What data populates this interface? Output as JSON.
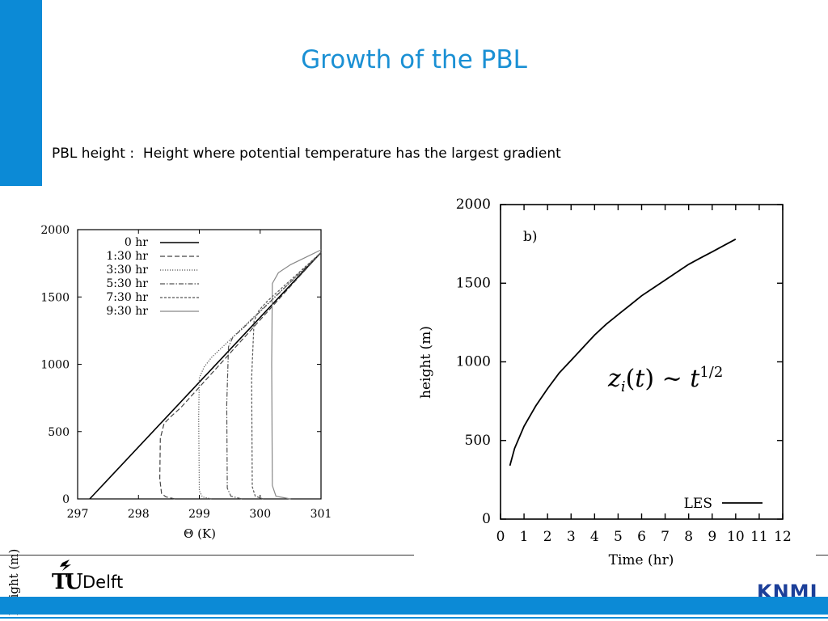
{
  "slide": {
    "title": "Growth of the PBL",
    "subtitle": "PBL height :  Height where potential temperature has the largest gradient",
    "logo_tu": "T",
    "logo_u": "U",
    "logo_delft": "Delft",
    "knmi": "KNMI"
  },
  "colors": {
    "accent": "#0c8ad6",
    "title": "#1a90d4",
    "knmi": "#1c3f99"
  },
  "chart_data": [
    {
      "type": "line",
      "xlabel": "Θ (K)",
      "ylabel": "Height (m)",
      "xlim": [
        297,
        301
      ],
      "ylim": [
        0,
        2000
      ],
      "xticks": [
        297,
        298,
        299,
        300,
        301
      ],
      "xtick_labels": [
        "297",
        "298",
        "299",
        "300",
        "301"
      ],
      "yticks": [
        0,
        500,
        1000,
        1500,
        2000
      ],
      "ytick_labels": [
        "0",
        "500",
        "1000",
        "1500",
        "2000"
      ],
      "legend_position": "top-left",
      "series": [
        {
          "name": "0 hr",
          "style": "solid",
          "color": "#000000",
          "x": [
            297.2,
            301.0
          ],
          "y": [
            0,
            1830
          ]
        },
        {
          "name": "1:30 hr",
          "style": "dashed",
          "color": "#444444",
          "x": [
            298.6,
            298.45,
            298.38,
            298.35,
            298.36,
            298.42,
            298.53,
            298.7,
            301.0
          ],
          "y": [
            0,
            15,
            40,
            150,
            450,
            560,
            610,
            680,
            1830
          ]
        },
        {
          "name": "3:30 hr",
          "style": "dotted",
          "color": "#555555",
          "x": [
            299.2,
            299.05,
            299.0,
            298.99,
            299.0,
            299.08,
            299.2,
            301.0
          ],
          "y": [
            0,
            15,
            60,
            600,
            900,
            980,
            1050,
            1830
          ]
        },
        {
          "name": "5:30 hr",
          "style": "dashdot",
          "color": "#555555",
          "x": [
            299.7,
            299.52,
            299.46,
            299.45,
            299.48,
            299.55,
            299.7,
            301.0
          ],
          "y": [
            0,
            20,
            80,
            700,
            1130,
            1200,
            1260,
            1830
          ]
        },
        {
          "name": "7:30 hr",
          "style": "shortdash",
          "color": "#555555",
          "x": [
            300.05,
            299.92,
            299.87,
            299.86,
            299.9,
            299.98,
            300.12,
            301.0
          ],
          "y": [
            0,
            20,
            90,
            900,
            1320,
            1400,
            1470,
            1830
          ]
        },
        {
          "name": "9:30 hr",
          "style": "solid-gray",
          "color": "#888888",
          "x": [
            300.5,
            300.26,
            300.2,
            300.19,
            300.2,
            300.3,
            300.5,
            301.0
          ],
          "y": [
            0,
            20,
            100,
            1000,
            1600,
            1680,
            1740,
            1850
          ]
        }
      ]
    },
    {
      "type": "line",
      "xlabel": "Time (hr)",
      "ylabel": "height (m)",
      "panel_label": "b)",
      "annotation": "z_i(t) ~ t^{1/2}",
      "xlim": [
        0,
        12
      ],
      "ylim": [
        0,
        2000
      ],
      "xticks": [
        0,
        1,
        2,
        3,
        4,
        5,
        6,
        7,
        8,
        9,
        10,
        11,
        12
      ],
      "xtick_labels": [
        "0",
        "1",
        "2",
        "3",
        "4",
        "5",
        "6",
        "7",
        "8",
        "9",
        "10",
        "11",
        "12"
      ],
      "yticks": [
        0,
        500,
        1000,
        1500,
        2000
      ],
      "ytick_labels": [
        "0",
        "500",
        "1000",
        "1500",
        "2000"
      ],
      "legend_position": "bottom-right",
      "series": [
        {
          "name": "LES",
          "style": "solid",
          "color": "#000000",
          "x": [
            0.4,
            0.6,
            1.0,
            1.5,
            2.0,
            2.5,
            3.0,
            3.5,
            4.0,
            4.5,
            5.0,
            5.5,
            6.0,
            6.5,
            7.0,
            7.5,
            8.0,
            8.5,
            9.0,
            9.5,
            10.0
          ],
          "y": [
            340,
            450,
            590,
            720,
            830,
            930,
            1010,
            1090,
            1170,
            1240,
            1300,
            1360,
            1420,
            1470,
            1520,
            1570,
            1620,
            1660,
            1700,
            1740,
            1780
          ]
        }
      ]
    }
  ]
}
